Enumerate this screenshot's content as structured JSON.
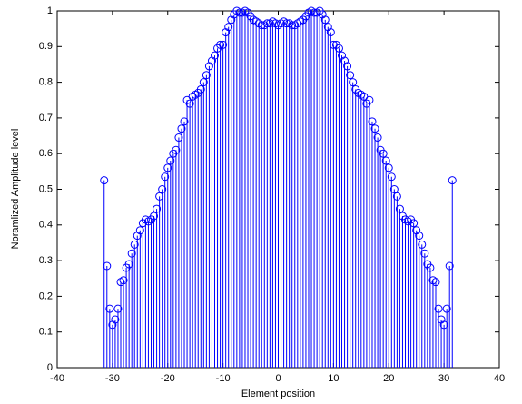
{
  "chart_data": {
    "type": "stem",
    "xlabel": "Element position",
    "ylabel": "Noramlized Amplitude level",
    "color": "#0000ff",
    "xlim": [
      -40,
      40
    ],
    "xticks": [
      -40,
      -30,
      -20,
      -10,
      0,
      10,
      20,
      30,
      40
    ],
    "ylim": [
      0,
      1
    ],
    "yticks": [
      0,
      0.1,
      0.2,
      0.3,
      0.4,
      0.5,
      0.6,
      0.7,
      0.8,
      0.9,
      1
    ],
    "x": [
      -31.5,
      -31,
      -30.5,
      -30,
      -29.5,
      -29,
      -28.5,
      -28,
      -27.5,
      -27,
      -26.5,
      -26,
      -25.5,
      -25,
      -24.5,
      -24,
      -23.5,
      -23,
      -22.5,
      -22,
      -21.5,
      -21,
      -20.5,
      -20,
      -19.5,
      -19,
      -18.5,
      -18,
      -17.5,
      -17,
      -16.5,
      -16,
      -15.5,
      -15,
      -14.5,
      -14,
      -13.5,
      -13,
      -12.5,
      -12,
      -11.5,
      -11,
      -10.5,
      -10,
      -9.5,
      -9,
      -8.5,
      -8,
      -7.5,
      -7,
      -6.5,
      -6,
      -5.5,
      -5,
      -4.5,
      -4,
      -3.5,
      -3,
      -2.5,
      -2,
      -1.5,
      -1,
      -0.5,
      0,
      0.5,
      1,
      1.5,
      2,
      2.5,
      3,
      3.5,
      4,
      4.5,
      5,
      5.5,
      6,
      6.5,
      7,
      7.5,
      8,
      8.5,
      9,
      9.5,
      10,
      10.5,
      11,
      11.5,
      12,
      12.5,
      13,
      13.5,
      14,
      14.5,
      15,
      15.5,
      16,
      16.5,
      17,
      17.5,
      18,
      18.5,
      19,
      19.5,
      20,
      20.5,
      21,
      21.5,
      22,
      22.5,
      23,
      23.5,
      24,
      24.5,
      25,
      25.5,
      26,
      26.5,
      27,
      27.5,
      28,
      28.5,
      29,
      29.5,
      30,
      30.5,
      31,
      31.5
    ],
    "values": [
      0.525,
      0.285,
      0.165,
      0.12,
      0.135,
      0.165,
      0.24,
      0.245,
      0.28,
      0.29,
      0.32,
      0.345,
      0.37,
      0.385,
      0.405,
      0.415,
      0.41,
      0.415,
      0.425,
      0.445,
      0.48,
      0.5,
      0.535,
      0.56,
      0.58,
      0.6,
      0.61,
      0.645,
      0.67,
      0.69,
      0.75,
      0.74,
      0.76,
      0.765,
      0.77,
      0.78,
      0.8,
      0.82,
      0.845,
      0.86,
      0.875,
      0.895,
      0.905,
      0.905,
      0.94,
      0.955,
      0.975,
      0.99,
      1.0,
      0.995,
      0.995,
      1.0,
      0.995,
      0.985,
      0.975,
      0.97,
      0.965,
      0.96,
      0.96,
      0.965,
      0.965,
      0.97,
      0.965,
      0.96,
      0.965,
      0.97,
      0.965,
      0.965,
      0.96,
      0.96,
      0.965,
      0.97,
      0.975,
      0.985,
      0.995,
      1.0,
      0.995,
      0.995,
      1.0,
      0.99,
      0.975,
      0.955,
      0.94,
      0.905,
      0.905,
      0.895,
      0.875,
      0.86,
      0.845,
      0.82,
      0.8,
      0.78,
      0.77,
      0.765,
      0.76,
      0.74,
      0.75,
      0.69,
      0.67,
      0.645,
      0.61,
      0.6,
      0.58,
      0.56,
      0.535,
      0.5,
      0.48,
      0.445,
      0.425,
      0.415,
      0.41,
      0.415,
      0.405,
      0.385,
      0.37,
      0.345,
      0.32,
      0.29,
      0.28,
      0.245,
      0.24,
      0.165,
      0.135,
      0.12,
      0.165,
      0.285,
      0.525
    ]
  }
}
